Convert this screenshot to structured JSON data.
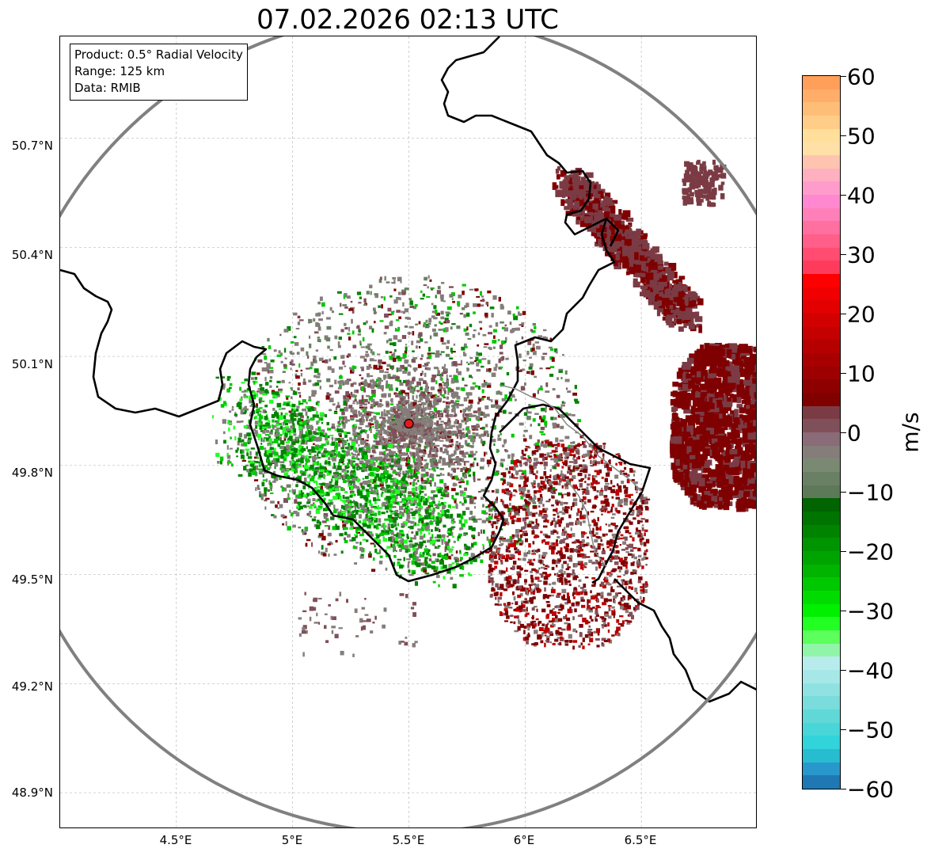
{
  "title": "07.02.2026 02:13 UTC",
  "info": {
    "product": "Product: 0.5° Radial Velocity",
    "range": "Range: 125 km",
    "source": "Data: RMIB"
  },
  "axes": {
    "lat_labels": [
      "50.7°N",
      "50.4°N",
      "50.1°N",
      "49.8°N",
      "49.5°N",
      "49.2°N",
      "48.9°N"
    ],
    "lon_labels": [
      "4.5°E",
      "5°E",
      "5.5°E",
      "6°E",
      "6.5°E"
    ],
    "lon_range": [
      4.0,
      7.0
    ],
    "lat_range": [
      48.8,
      50.98
    ]
  },
  "radar": {
    "lon": 5.5,
    "lat": 49.915,
    "range_km": 125
  },
  "colorbar": {
    "label": "m/s",
    "min": -60,
    "max": 60,
    "ticks": [
      "60",
      "50",
      "40",
      "30",
      "20",
      "10",
      "0",
      "−10",
      "−20",
      "−30",
      "−40",
      "−50",
      "−60"
    ],
    "colors_top_to_bottom": [
      "#ff9f5a",
      "#ffae6a",
      "#ffbe78",
      "#ffcd88",
      "#ffdf99",
      "#ffe0a6",
      "#ffc4b0",
      "#ffb0c0",
      "#ff9ccc",
      "#ff88d0",
      "#ff7fb8",
      "#ff6f9f",
      "#ff5f88",
      "#ff4c70",
      "#ff3b5c",
      "#ff0000",
      "#f00000",
      "#e20000",
      "#d20000",
      "#c40000",
      "#b60000",
      "#a80000",
      "#9c0000",
      "#8e0000",
      "#800000",
      "#7b3b44",
      "#80505a",
      "#8a6b78",
      "#857d7a",
      "#7a8a72",
      "#6a8065",
      "#5d7a58",
      "#006400",
      "#007400",
      "#008400",
      "#009400",
      "#00a400",
      "#00b400",
      "#00c800",
      "#00dc00",
      "#00f000",
      "#22ff22",
      "#5cff5c",
      "#90f5a8",
      "#b8ecec",
      "#a6e8e8",
      "#90e2e2",
      "#7adcdc",
      "#60d8d8",
      "#48d6d8",
      "#30d4da",
      "#28bcd0",
      "#2898cc",
      "#1f77b4"
    ]
  },
  "colors": {
    "border": "#000000",
    "internal_border": "#888888",
    "range_ring": "#808080",
    "radar_marker": "#e31a1c",
    "vel_colors": {
      "maroon": "#7f0000",
      "brownred": "#7b3b44",
      "mauve": "#80505a",
      "gray": "#857d7a",
      "greengray": "#6a8065",
      "darkgreen": "#008400",
      "green": "#00c800",
      "lightgreen": "#22ff22",
      "pink": "#ff6f9f",
      "red": "#c00000"
    }
  }
}
